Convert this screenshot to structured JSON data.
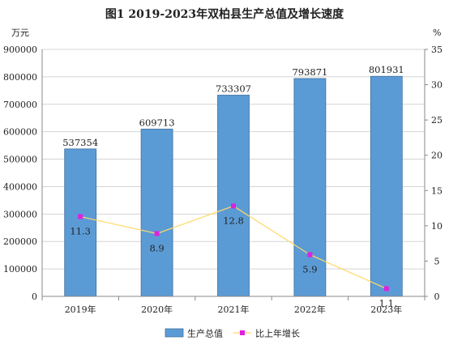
{
  "chart_data": {
    "type": "bar",
    "title": "图1 2019-2023年双柏县生产总值及增长速度",
    "categories": [
      "2019年",
      "2020年",
      "2021年",
      "2022年",
      "2023年"
    ],
    "series": [
      {
        "name": "生产总值",
        "type": "bar",
        "axis": "left",
        "color": "#5b9bd5",
        "values": [
          537354,
          609713,
          733307,
          793871,
          801931
        ],
        "labels": [
          "537354",
          "609713",
          "733307",
          "793871",
          "801931"
        ]
      },
      {
        "name": "比上年增长",
        "type": "line",
        "axis": "right",
        "line_color": "#ffd966",
        "marker_color": "#e020e0",
        "values": [
          11.3,
          8.9,
          12.8,
          5.9,
          1.1
        ],
        "labels": [
          "11.3",
          "8.9",
          "12.8",
          "5.9",
          "1.1"
        ]
      }
    ],
    "y_left": {
      "unit": "万元",
      "ylim": [
        0,
        900000
      ],
      "ticks": [
        "0",
        "100000",
        "200000",
        "300000",
        "400000",
        "500000",
        "600000",
        "700000",
        "800000",
        "900000"
      ]
    },
    "y_right": {
      "unit": "%",
      "ylim": [
        0,
        35
      ],
      "ticks": [
        "0",
        "5",
        "10",
        "15",
        "20",
        "25",
        "30",
        "35"
      ]
    },
    "grid": true,
    "legend_position": "bottom"
  }
}
